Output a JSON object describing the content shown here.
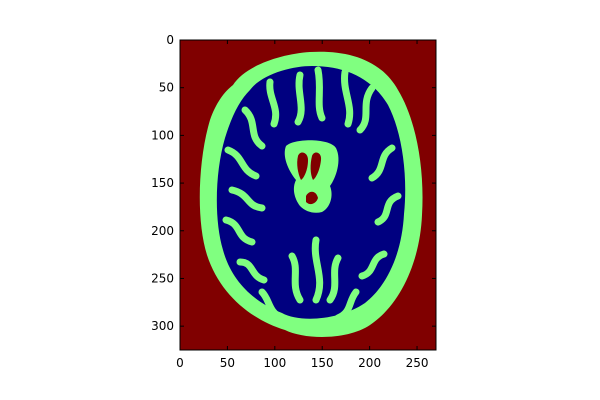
{
  "chart_data": {
    "type": "heatmap",
    "title": "",
    "xlabel": "",
    "ylabel": "",
    "xlim": [
      0,
      270
    ],
    "ylim": [
      325,
      0
    ],
    "y_axis_inverted": true,
    "grid": false,
    "legend": "none",
    "x_ticks": [
      0,
      50,
      100,
      150,
      200,
      250
    ],
    "y_ticks": [
      0,
      50,
      100,
      150,
      200,
      250,
      300
    ],
    "x_tick_labels": [
      "0",
      "50",
      "100",
      "150",
      "200",
      "250"
    ],
    "y_tick_labels": [
      "0",
      "50",
      "100",
      "150",
      "200",
      "250",
      "300"
    ],
    "classes": [
      {
        "value": 0,
        "color": "#000080"
      },
      {
        "value": 1,
        "color": "#80ff80"
      },
      {
        "value": 2,
        "color": "#800000"
      }
    ],
    "regions": {
      "background": {
        "class": 2,
        "extent_x": [
          0,
          270
        ],
        "extent_y": [
          0,
          325
        ]
      },
      "brain_outline": {
        "class": 1,
        "center": [
          135,
          178
        ],
        "radius_x": 115,
        "radius_y": 148
      },
      "white_matter": {
        "class": 0,
        "center": [
          140,
          180
        ],
        "radius_x": 92,
        "radius_y": 125
      },
      "ventricles": {
        "class": 2,
        "center": [
          128,
          165
        ]
      }
    }
  }
}
